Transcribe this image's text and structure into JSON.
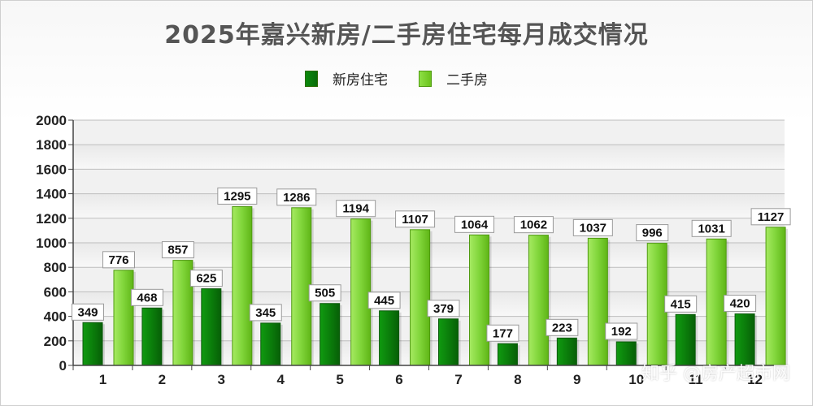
{
  "chart_data": {
    "type": "bar",
    "title": "2025年嘉兴新房/二手房住宅每月成交情况",
    "categories": [
      "1",
      "2",
      "3",
      "4",
      "5",
      "6",
      "7",
      "8",
      "9",
      "10",
      "11",
      "12"
    ],
    "series": [
      {
        "name": "新房住宅",
        "values": [
          349,
          468,
          625,
          345,
          505,
          445,
          379,
          177,
          223,
          192,
          415,
          420
        ],
        "color": "#0a7a0a"
      },
      {
        "name": "二手房",
        "values": [
          776,
          857,
          1295,
          1286,
          1194,
          1107,
          1064,
          1062,
          1037,
          996,
          1031,
          1127
        ],
        "color": "#7fd337"
      }
    ],
    "ylim": [
      0,
      2000
    ],
    "yticks": [
      0,
      200,
      400,
      600,
      800,
      1000,
      1200,
      1400,
      1600,
      1800,
      2000
    ],
    "grid": true,
    "legend_position": "top-center"
  },
  "watermark_text": "知乎 @房产超市网"
}
